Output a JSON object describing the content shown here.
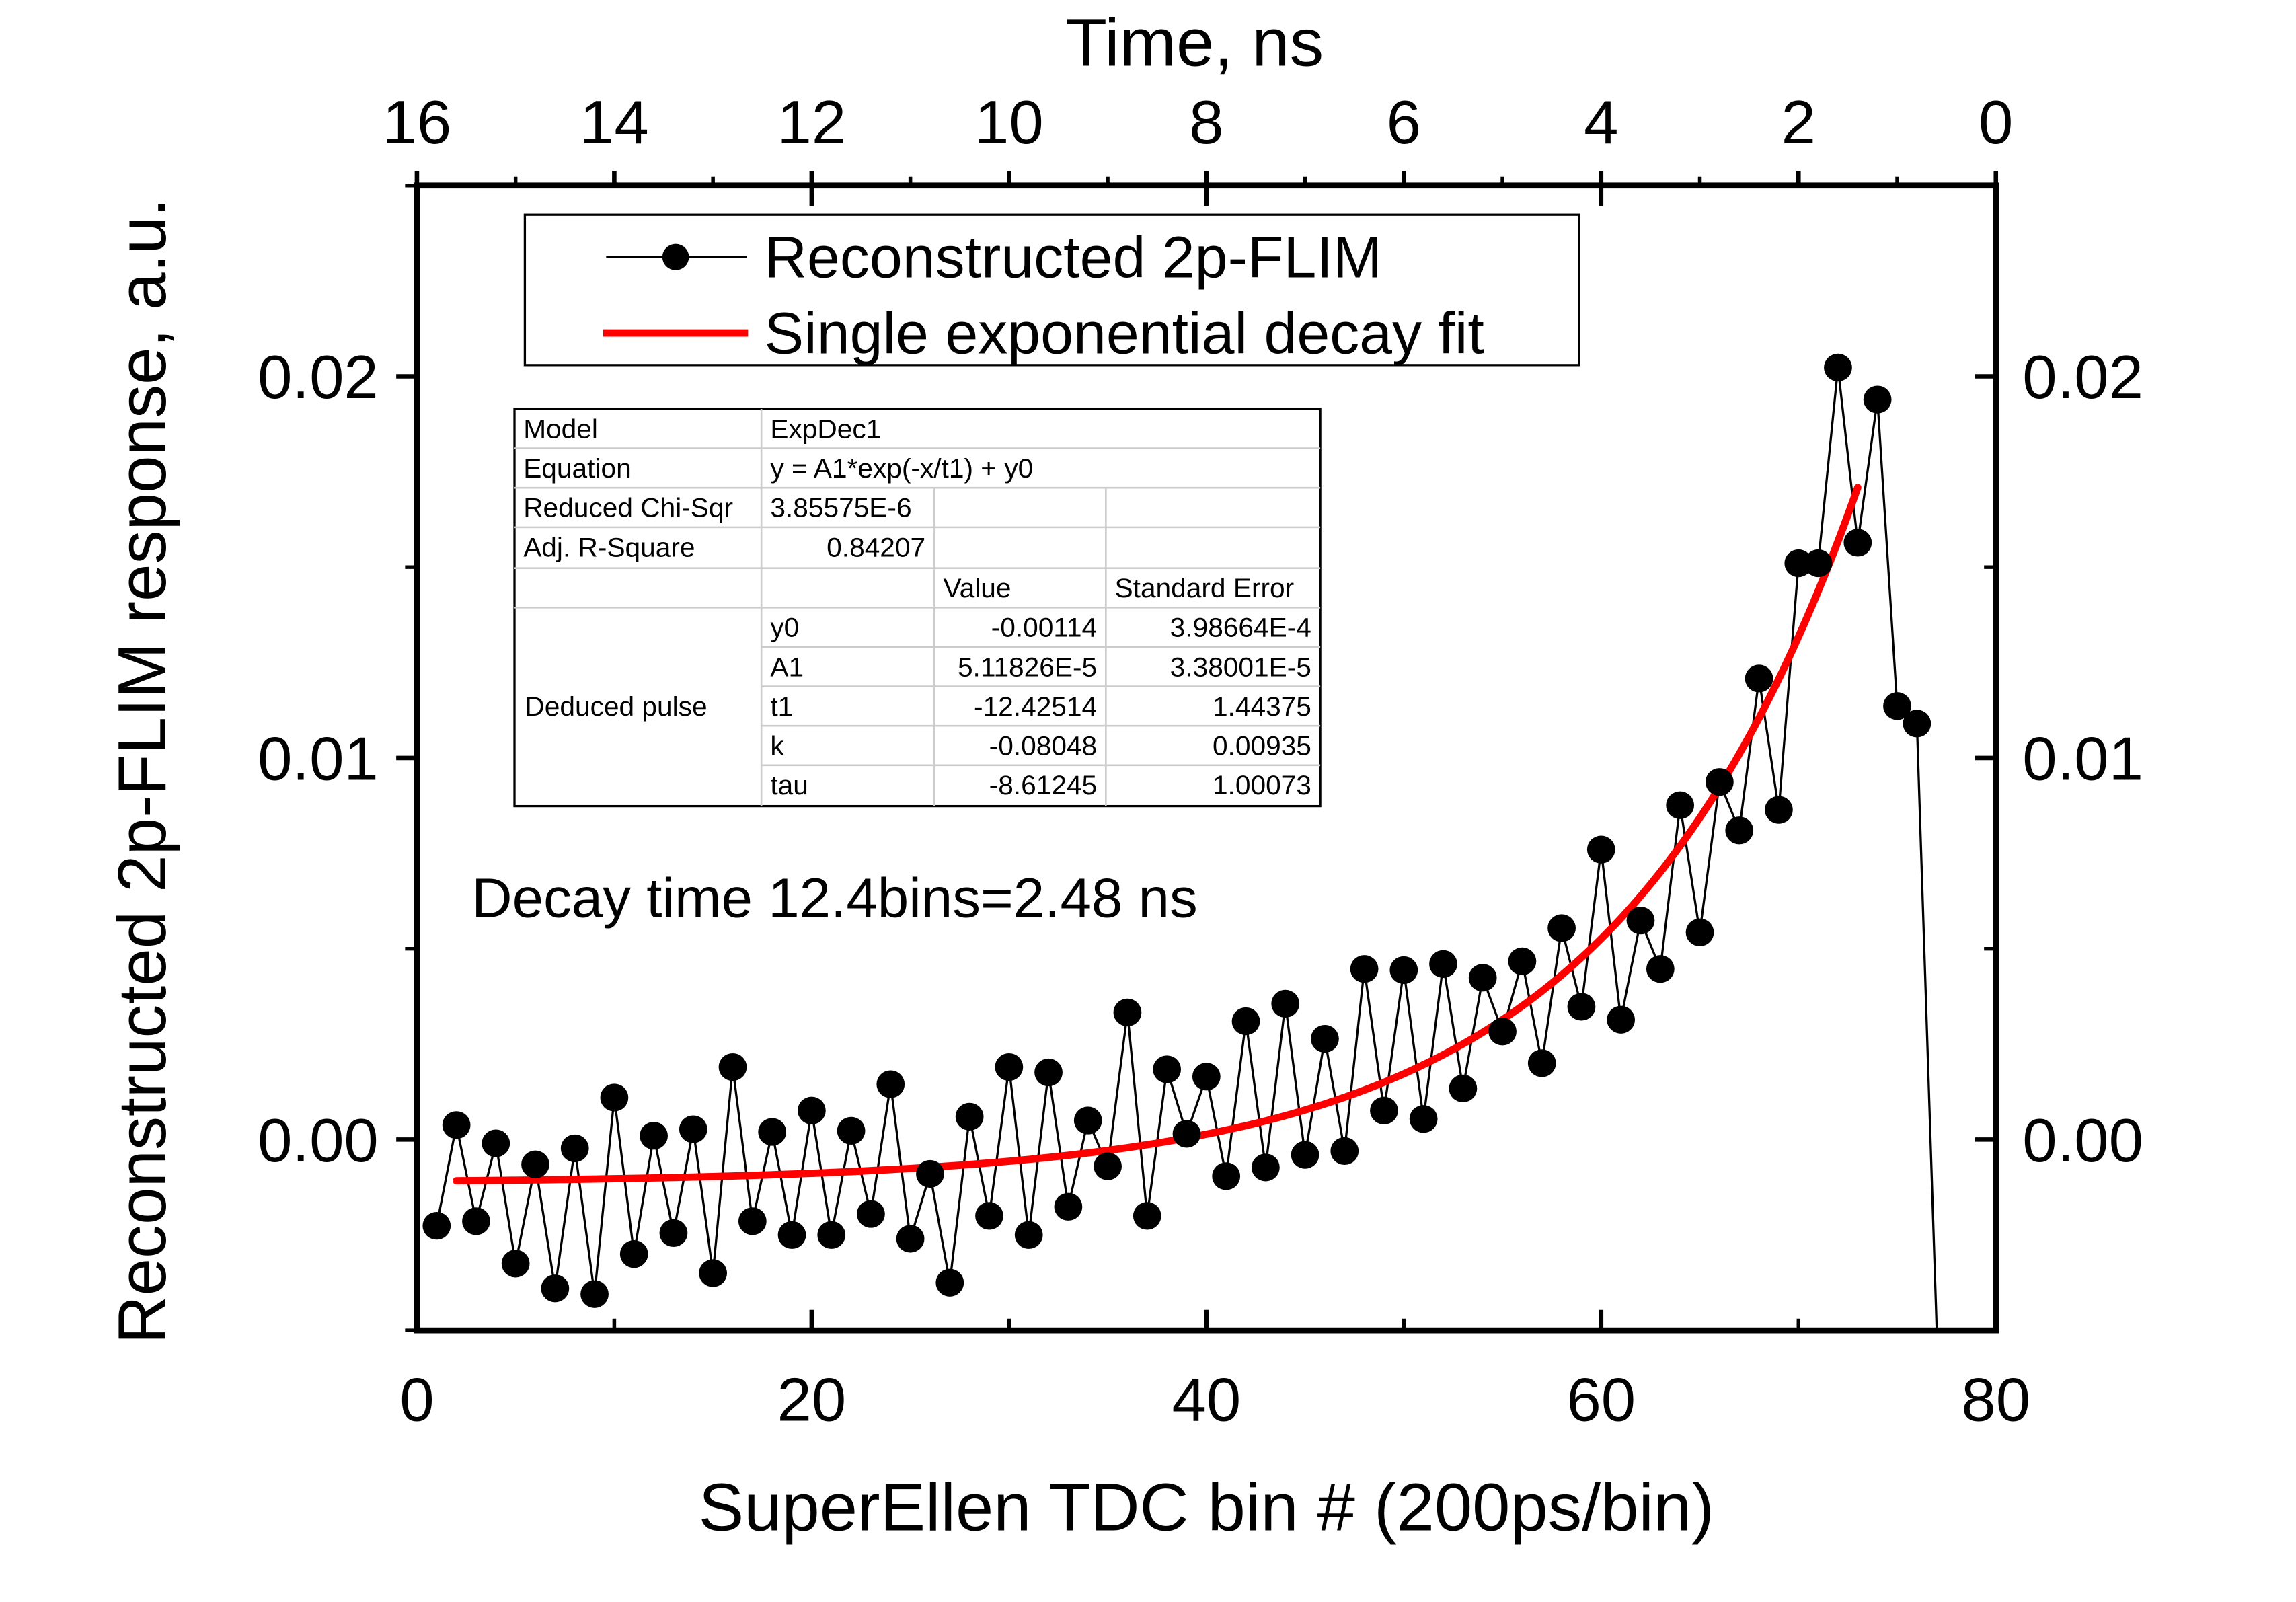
{
  "chart_data": {
    "type": "scatter",
    "xlabel": "SuperEllen TDC bin # (200ps/bin)",
    "ylabel": "Reconstructed 2p-FLIM response, a.u.",
    "top_xlabel": "Time, ns",
    "xlim": [
      0,
      80
    ],
    "ylim": [
      -0.005,
      0.025
    ],
    "top_xlim": [
      16,
      0
    ],
    "x_ticks": [
      "0",
      "20",
      "40",
      "60",
      "80"
    ],
    "x_tick_values": [
      0,
      20,
      40,
      60,
      80
    ],
    "top_ticks": [
      "16",
      "14",
      "12",
      "10",
      "8",
      "6",
      "4",
      "2",
      "0"
    ],
    "top_tick_values": [
      16,
      14,
      12,
      10,
      8,
      6,
      4,
      2,
      0
    ],
    "y_ticks": [
      "0.00",
      "0.01",
      "0.02"
    ],
    "y_tick_values": [
      0,
      0.01,
      0.02
    ],
    "grid": false,
    "legend_position": "top",
    "annotation": "Decay time 12.4bins=2.48 ns",
    "colors": {
      "data": "#000000",
      "fit": "#ff0000"
    },
    "series": [
      {
        "name": "Reconstructed 2p-FLIM",
        "style": "line+markers",
        "x": [
          1,
          2,
          3,
          4,
          5,
          6,
          7,
          8,
          9,
          10,
          11,
          12,
          13,
          14,
          15,
          16,
          17,
          18,
          19,
          20,
          21,
          22,
          23,
          24,
          25,
          26,
          27,
          28,
          29,
          30,
          31,
          32,
          33,
          34,
          35,
          36,
          37,
          38,
          39,
          40,
          41,
          42,
          43,
          44,
          45,
          46,
          47,
          48,
          49,
          50,
          51,
          52,
          53,
          54,
          55,
          56,
          57,
          58,
          59,
          60,
          61,
          62,
          63,
          64,
          65,
          66,
          67,
          68,
          69,
          70,
          71,
          72,
          73,
          74,
          75,
          76
        ],
        "y": [
          -0.00226,
          0.00038,
          -0.00214,
          -0.0001,
          -0.00325,
          -0.00065,
          -0.0039,
          -0.00023,
          -0.00405,
          0.0011,
          -0.003,
          0.0001,
          -0.00245,
          0.00027,
          -0.0035,
          0.0019,
          -0.00214,
          0.0002,
          -0.0025,
          0.00076,
          -0.0025,
          0.00023,
          -0.00195,
          0.00145,
          -0.0026,
          -0.0009,
          -0.00375,
          0.0006,
          -0.002,
          0.0019,
          -0.0025,
          0.00176,
          -0.00176,
          0.0005,
          -0.0007,
          0.00333,
          -0.002,
          0.00184,
          0.00015,
          0.00165,
          -0.00096,
          0.0031,
          -0.00073,
          0.00356,
          -0.0004,
          0.00264,
          -0.0003,
          0.00447,
          0.00076,
          0.00444,
          0.00054,
          0.0046,
          0.00134,
          0.00424,
          0.00283,
          0.00467,
          0.002,
          0.00554,
          0.00348,
          0.0076,
          0.00314,
          0.00574,
          0.00447,
          0.00876,
          0.00543,
          0.00937,
          0.0081,
          0.01208,
          0.00864,
          0.0151,
          0.0151,
          0.02023,
          0.01564,
          0.01939,
          0.01136,
          0.0109
        ]
      },
      {
        "name": "Single exponential decay fit",
        "style": "line",
        "model": "y = A1*exp(-x/t1) + y0",
        "params": {
          "A1": 5.11826e-05,
          "t1": -12.42514,
          "y0": -0.00114
        },
        "x_range": [
          2,
          73
        ]
      }
    ]
  },
  "legend": {
    "items": [
      "Reconstructed 2p-FLIM",
      "Single exponential decay fit"
    ]
  },
  "fit_table": {
    "rows": [
      [
        "Model",
        "ExpDec1",
        "",
        ""
      ],
      [
        "Equation",
        "y = A1*exp(-x/t1) + y0",
        "",
        ""
      ],
      [
        "Reduced Chi-Sqr",
        "3.85575E-6",
        "",
        ""
      ],
      [
        "Adj. R-Square",
        "0.84207",
        "",
        ""
      ],
      [
        "",
        "",
        "Value",
        "Standard Error"
      ],
      [
        "",
        "y0",
        "-0.00114",
        "3.98664E-4"
      ],
      [
        "",
        "A1",
        "5.11826E-5",
        "3.38001E-5"
      ],
      [
        "",
        "t1",
        "-12.42514",
        "1.44375"
      ],
      [
        "",
        "k",
        "-0.08048",
        "0.00935"
      ],
      [
        "",
        "tau",
        "-8.61245",
        "1.00073"
      ]
    ],
    "group_label": "Deduced pulse"
  }
}
